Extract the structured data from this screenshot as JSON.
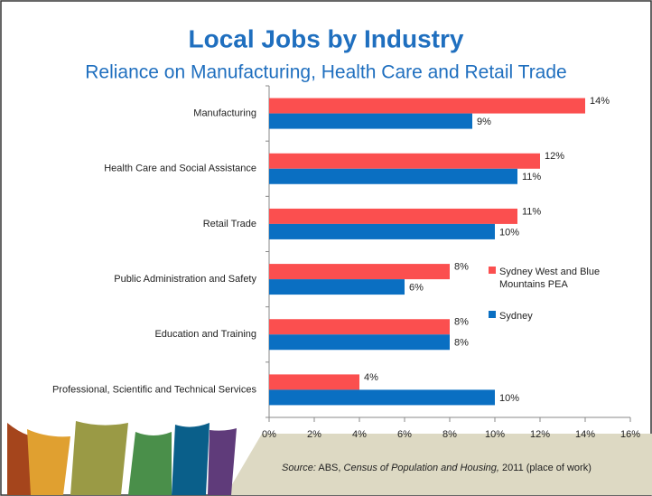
{
  "chart_data": {
    "type": "bar",
    "orientation": "horizontal",
    "title": "Local Jobs by Industry",
    "subtitle": "Reliance on Manufacturing, Health Care and Retail Trade",
    "categories": [
      "Manufacturing",
      "Health Care and Social Assistance",
      "Retail Trade",
      "Public Administration and Safety",
      "Education and Training",
      "Professional, Scientific and Technical Services"
    ],
    "series": [
      {
        "name": "Sydney West and Blue Mountains PEA",
        "color": "#fb4f4f",
        "values": [
          14,
          12,
          11,
          8,
          8,
          4
        ],
        "value_labels": [
          "14%",
          "12%",
          "11%",
          "8%",
          "8%",
          "4%"
        ]
      },
      {
        "name": "Sydney",
        "color": "#0a6fc2",
        "values": [
          9,
          11,
          10,
          6,
          8,
          10
        ],
        "value_labels": [
          "9%",
          "11%",
          "10%",
          "6%",
          "8%",
          "10%"
        ]
      }
    ],
    "xlim": [
      0,
      16
    ],
    "xticks": [
      {
        "value": 0,
        "label": "0%"
      },
      {
        "value": 2,
        "label": "2%"
      },
      {
        "value": 4,
        "label": "4%"
      },
      {
        "value": 6,
        "label": "6%"
      },
      {
        "value": 8,
        "label": "8%"
      },
      {
        "value": 10,
        "label": "10%"
      },
      {
        "value": 12,
        "label": "12%"
      },
      {
        "value": 14,
        "label": "14%"
      },
      {
        "value": 16,
        "label": "16%"
      }
    ],
    "grid": false,
    "legend": "right",
    "source": [
      "Source:",
      "ABS,",
      "Census of Population and Housing,",
      "2011 (place of work)"
    ]
  }
}
